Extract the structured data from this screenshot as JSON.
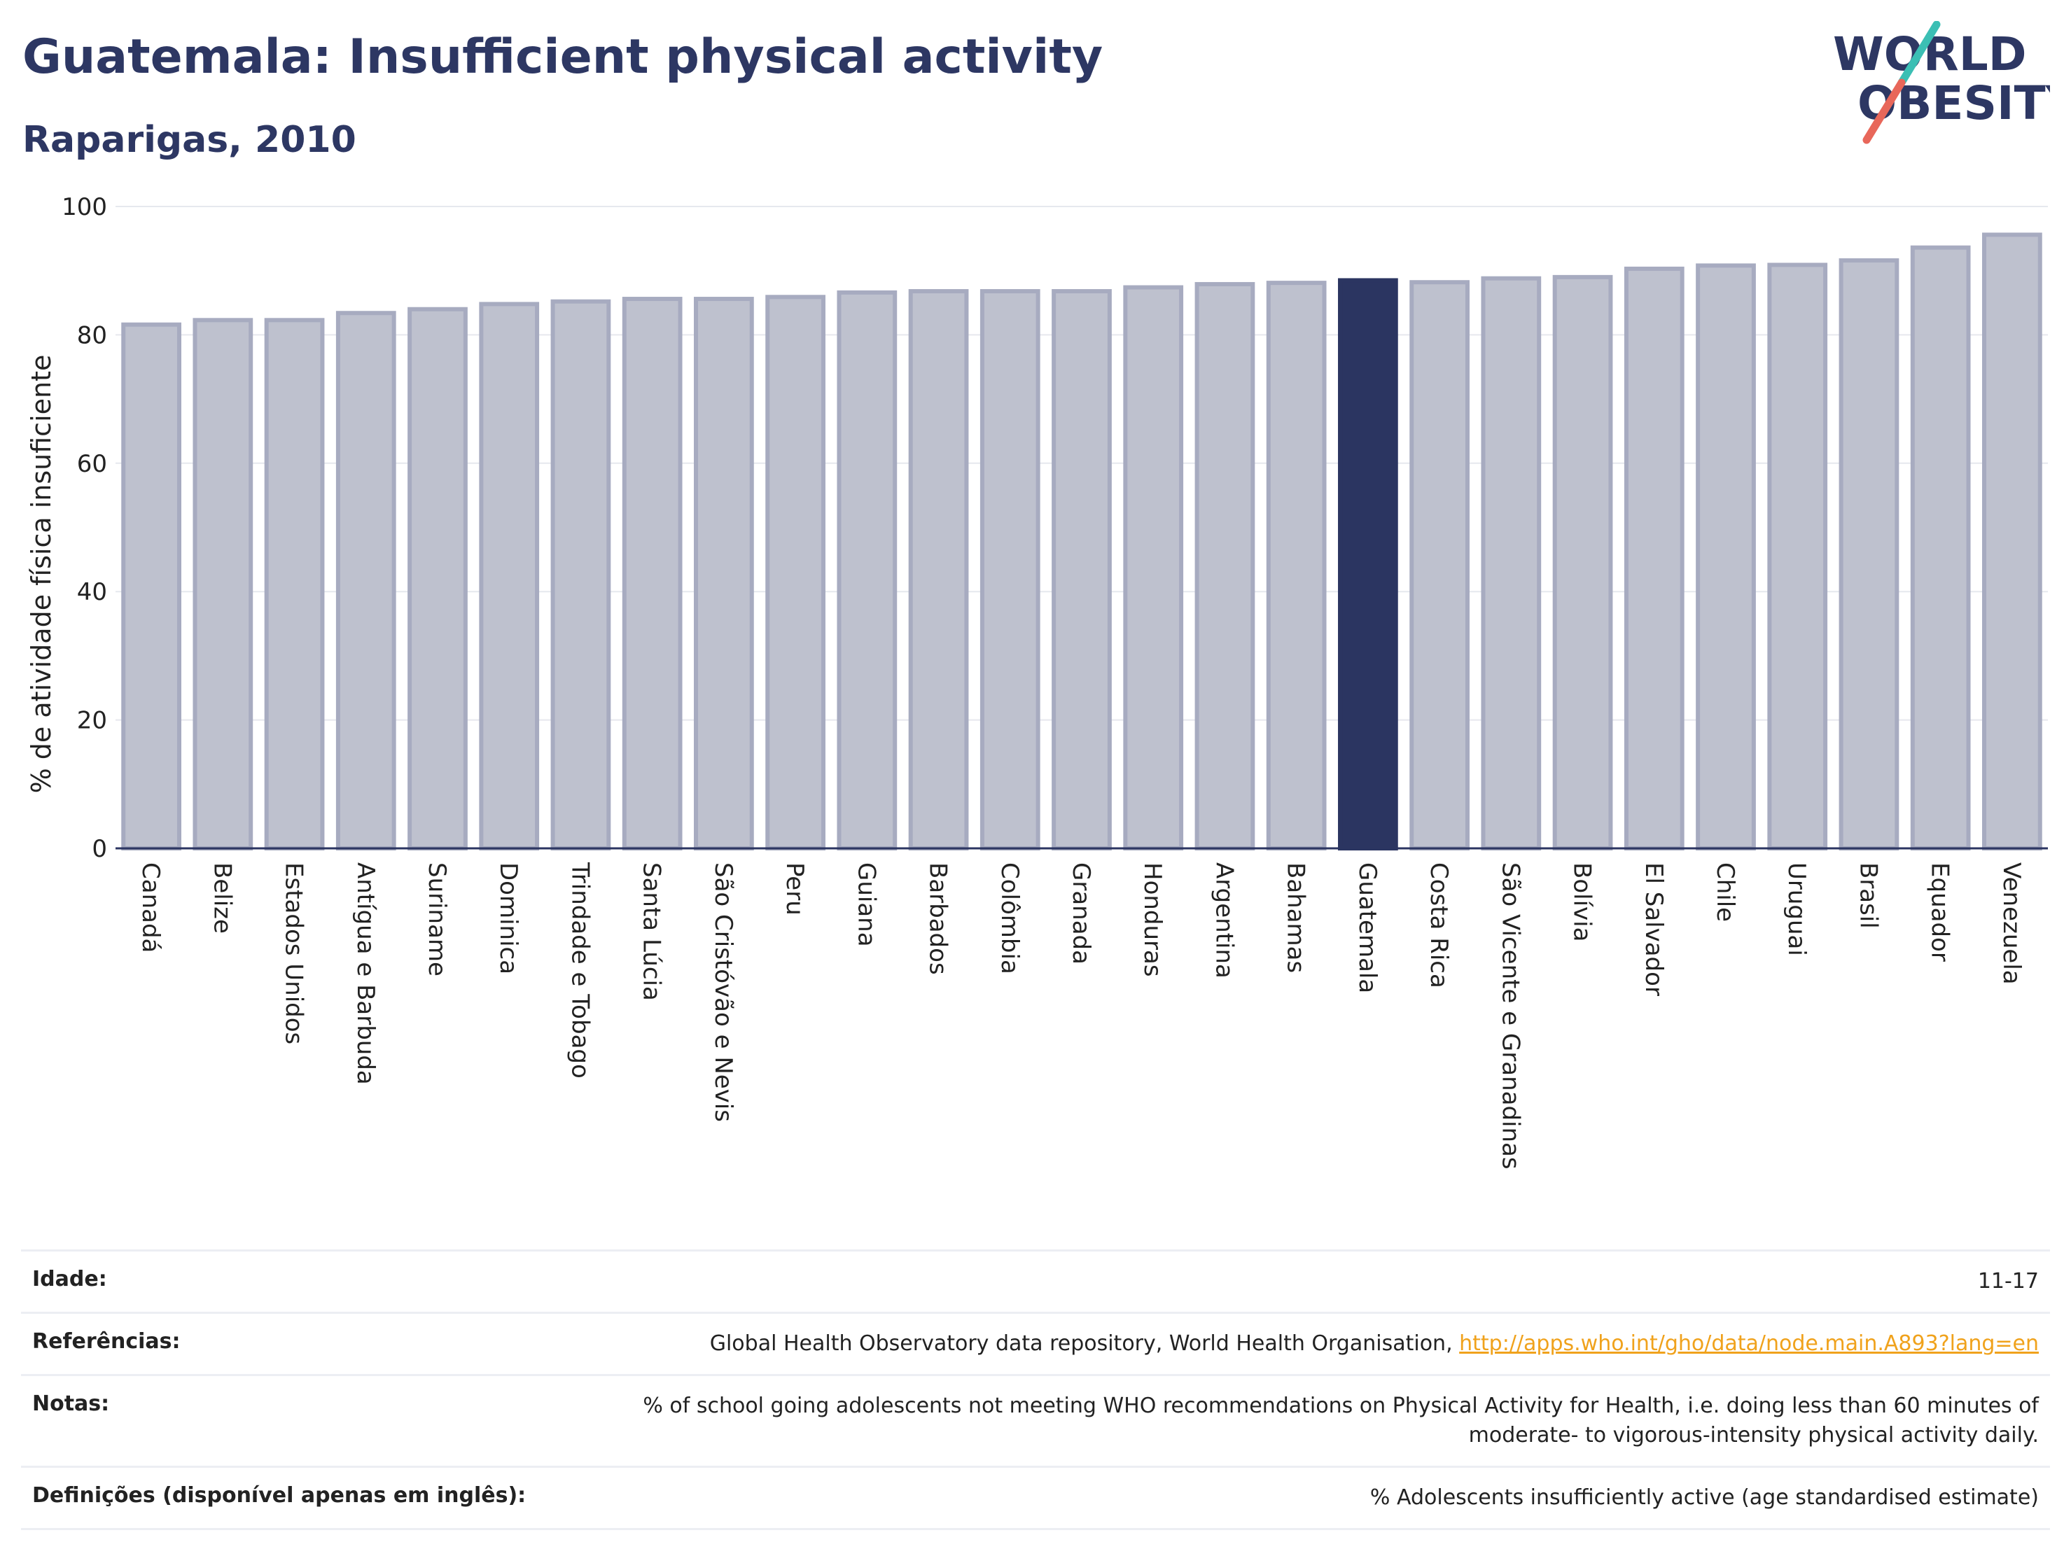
{
  "header": {
    "title": "Guatemala: Insufficient physical activity",
    "subtitle": "Raparigas, 2010"
  },
  "logo": {
    "line1": "WORLD",
    "line2": "OBESITY",
    "colors": {
      "text": "#2d3763",
      "slash_teal": "#3bbfb4",
      "slash_red": "#e8675a"
    }
  },
  "colors": {
    "bar": "#bec1ce",
    "bar_border": "#a7abc0",
    "highlight": "#2b3561",
    "grid": "#e6e8ee",
    "axis": "#2b3561"
  },
  "chart_data": {
    "type": "bar",
    "ylabel": "% de atividade física insuficiente",
    "ylim": [
      0,
      100
    ],
    "yticks": [
      0,
      20,
      40,
      60,
      80,
      100
    ],
    "grid": true,
    "highlight": "Guatemala",
    "categories": [
      "Canadá",
      "Belize",
      "Estados Unidos",
      "Antígua e Barbuda",
      "Suriname",
      "Dominica",
      "Trindade e Tobago",
      "Santa Lúcia",
      "São Cristóvão e Nevis",
      "Peru",
      "Guiana",
      "Barbados",
      "Colômbia",
      "Granada",
      "Honduras",
      "Argentina",
      "Bahamas",
      "Guatemala",
      "Costa Rica",
      "São Vicente e Granadinas",
      "Bolívia",
      "El Salvador",
      "Chile",
      "Uruguai",
      "Brasil",
      "Equador",
      "Venezuela"
    ],
    "values": [
      81.6,
      82.3,
      82.3,
      83.4,
      84.0,
      84.8,
      85.2,
      85.6,
      85.6,
      85.9,
      86.6,
      86.8,
      86.8,
      86.8,
      87.4,
      87.9,
      88.1,
      88.5,
      88.2,
      88.8,
      89.0,
      90.3,
      90.8,
      90.9,
      91.6,
      93.6,
      95.6
    ]
  },
  "info": {
    "age": {
      "label": "Idade:",
      "value": "11-17"
    },
    "references": {
      "label": "Referências:",
      "text": "Global Health Observatory data repository, World Health Organisation, ",
      "link": "http://apps.who.int/gho/data/node.main.A893?lang=en"
    },
    "notes": {
      "label": "Notas:",
      "value": "% of school going adolescents not meeting WHO recommendations on Physical Activity for Health, i.e. doing less than 60 minutes of moderate- to vigorous-intensity physical activity daily."
    },
    "definitions": {
      "label": "Definições (disponível apenas em inglês):",
      "value": "% Adolescents insufficiently active (age standardised estimate)"
    }
  }
}
